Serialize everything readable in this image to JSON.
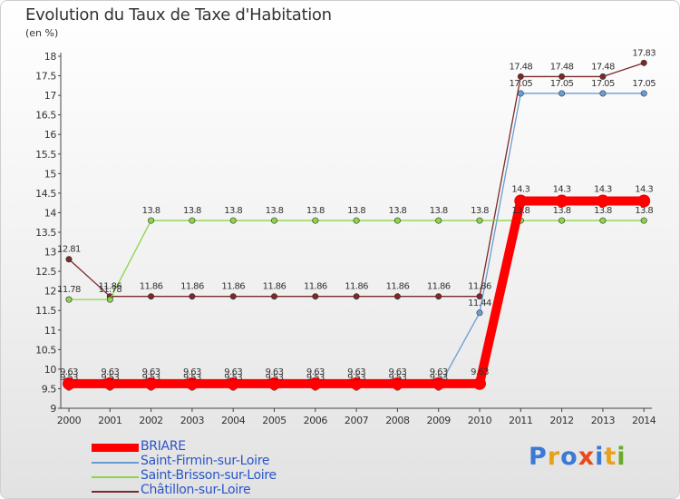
{
  "title": "Evolution du Taux de Taxe d'Habitation",
  "subtitle": "(en %)",
  "logo": {
    "letters": [
      "P",
      "r",
      "o",
      "x",
      "i",
      "t",
      "i"
    ],
    "colors": [
      "#3a7ad4",
      "#e8a21a",
      "#3a7ad4",
      "#e84a1a",
      "#3a7ad4",
      "#e8a21a",
      "#6aaa2a"
    ]
  },
  "chart_data": {
    "type": "line",
    "title": "Evolution du Taux de Taxe d'Habitation",
    "ylabel": "(en %)",
    "xlabel": "",
    "ylim": [
      9,
      18
    ],
    "y_ticks": [
      "9",
      "9.5",
      "10",
      "10.5",
      "11",
      "11.5",
      "12",
      "12.5",
      "13",
      "13.5",
      "14",
      "14.5",
      "15",
      "15.5",
      "16",
      "16.5",
      "17",
      "17.5",
      "18"
    ],
    "categories": [
      "2000",
      "2001",
      "2002",
      "2003",
      "2004",
      "2005",
      "2006",
      "2007",
      "2008",
      "2009",
      "2010",
      "2011",
      "2012",
      "2013",
      "2014"
    ],
    "series": [
      {
        "name": "BRIARE",
        "color": "#ff0000",
        "values": [
          9.63,
          9.63,
          9.63,
          9.63,
          9.63,
          9.63,
          9.63,
          9.63,
          9.63,
          9.63,
          9.63,
          14.3,
          14.3,
          14.3,
          14.3
        ],
        "labels": [
          "9.63",
          "9.63",
          "9.63",
          "9.63",
          "9.63",
          "9.63",
          "9.63",
          "9.63",
          "9.63",
          "9.63",
          "9.63",
          "14.3",
          "14.3",
          "14.3",
          "14.3"
        ]
      },
      {
        "name": "Saint-Firmin-sur-Loire",
        "color": "#6a9cd4",
        "values": [
          9.53,
          9.53,
          9.53,
          9.53,
          9.53,
          9.53,
          9.53,
          9.53,
          9.53,
          9.53,
          11.44,
          17.05,
          17.05,
          17.05,
          17.05
        ],
        "labels": [
          "9.53",
          "9.53",
          "9.53",
          "9.53",
          "9.53",
          "9.53",
          "9.53",
          "9.53",
          "9.53",
          "9.53",
          "11.44",
          "17.05",
          "17.05",
          "17.05",
          "17.05"
        ]
      },
      {
        "name": "Saint-Brisson-sur-Loire",
        "color": "#8cd44a",
        "values": [
          11.78,
          11.78,
          13.8,
          13.8,
          13.8,
          13.8,
          13.8,
          13.8,
          13.8,
          13.8,
          13.8,
          13.8,
          13.8,
          13.8,
          13.8
        ],
        "labels": [
          "11.78",
          "11.78",
          "13.8",
          "13.8",
          "13.8",
          "13.8",
          "13.8",
          "13.8",
          "13.8",
          "13.8",
          "13.8",
          "13.8",
          "13.8",
          "13.8",
          "13.8"
        ]
      },
      {
        "name": "Châtillon-sur-Loire",
        "color": "#7a2a2a",
        "values": [
          12.81,
          11.86,
          11.86,
          11.86,
          11.86,
          11.86,
          11.86,
          11.86,
          11.86,
          11.86,
          11.86,
          17.48,
          17.48,
          17.48,
          17.83
        ],
        "labels": [
          "12.81",
          "11.86",
          "11.86",
          "11.86",
          "11.86",
          "11.86",
          "11.86",
          "11.86",
          "11.86",
          "11.86",
          "11.86",
          "17.48",
          "17.48",
          "17.48",
          "17.83"
        ]
      }
    ],
    "legend_position": "bottom-left",
    "grid": false
  }
}
